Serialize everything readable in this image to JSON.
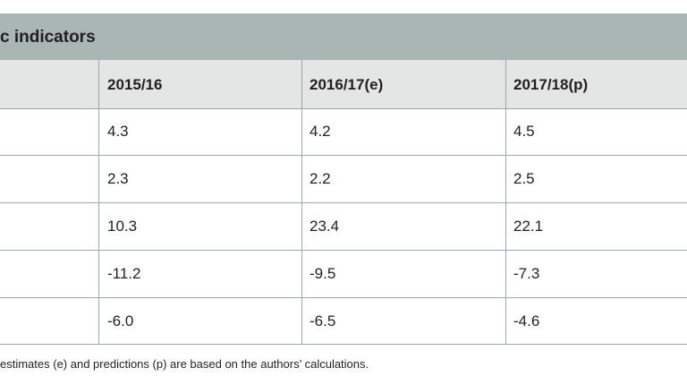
{
  "table": {
    "title": "c indicators",
    "columns": [
      "2015/16",
      "2016/17(e)",
      "2017/18(p)"
    ],
    "rows": [
      [
        "4.3",
        "4.2",
        "4.5"
      ],
      [
        "2.3",
        "2.2",
        "2.5"
      ],
      [
        "10.3",
        "23.4",
        "22.1"
      ],
      [
        "-11.2",
        "-9.5",
        "-7.3"
      ],
      [
        "-6.0",
        "-6.5",
        "-4.6"
      ]
    ],
    "footnote": "estimates (e) and predictions (p) are based on the authors’ calculations."
  }
}
